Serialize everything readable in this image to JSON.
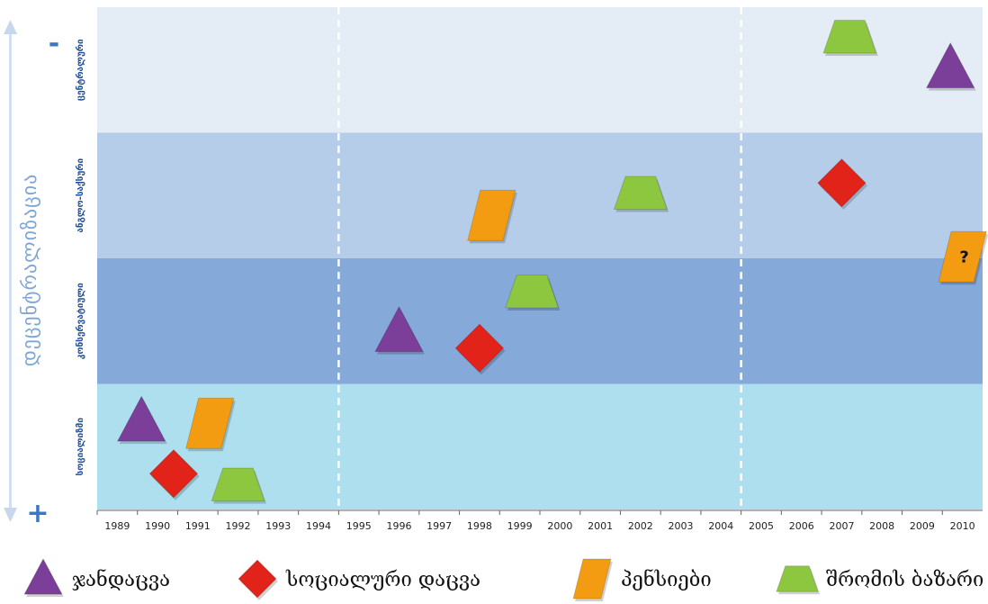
{
  "chart_data": {
    "type": "scatter",
    "title": "",
    "y_axis_title": "დეცენტრალიზაცია",
    "y_axis_top_sign": "-",
    "y_axis_bottom_sign": "+",
    "x": [
      "1989",
      "1990",
      "1991",
      "1992",
      "1993",
      "1994",
      "1995",
      "1996",
      "1997",
      "1998",
      "1999",
      "2000",
      "2001",
      "2002",
      "2003",
      "2004",
      "2005",
      "2006",
      "2007",
      "2008",
      "2009",
      "2010"
    ],
    "bands": [
      {
        "label": "ცენტრალური",
        "color": "#e4ecf6"
      },
      {
        "label": "ანგლო-საქსური",
        "color": "#b5cde8"
      },
      {
        "label": "კონსერვატიული",
        "color": "#85aad9"
      },
      {
        "label": "სოციალიზმი",
        "color": "#aedfee"
      }
    ],
    "legend": [
      {
        "label": "ჯანდაცვა",
        "shape": "triangle",
        "color": "#7b3f99"
      },
      {
        "label": "სოციალური დაცვა",
        "shape": "diamond",
        "color": "#e2231a"
      },
      {
        "label": "პენსიები",
        "shape": "parallelogram",
        "color": "#f39c12"
      },
      {
        "label": "შრომის ბაზარი",
        "shape": "trapezoid",
        "color": "#8dc63f"
      }
    ],
    "points": [
      {
        "series": "ჯანდაცვა",
        "x": 1989.6,
        "band": "სოციალიზმი"
      },
      {
        "series": "სოციალური დაცვა",
        "x": 1990.4,
        "band": "სოციალიზმი"
      },
      {
        "series": "პენსიები",
        "x": 1991.3,
        "band": "სოციალიზმი"
      },
      {
        "series": "შრომის ბაზარი",
        "x": 1992.0,
        "band": "სოციალიზმი"
      },
      {
        "series": "ჯანდაცვა",
        "x": 1996.0,
        "band": "კონსერვატიული"
      },
      {
        "series": "სოციალური დაცვა",
        "x": 1998.0,
        "band": "კონსერვატიული"
      },
      {
        "series": "შრომის ბაზარი",
        "x": 1999.3,
        "band": "კონსერვატიული"
      },
      {
        "series": "პენსიები",
        "x": 1998.3,
        "band": "ანგლო-საქსური"
      },
      {
        "series": "შრომის ბაზარი",
        "x": 2002.0,
        "band": "ანგლო-საქსური"
      },
      {
        "series": "სოციალური დაცვა",
        "x": 2007.0,
        "band": "ანგლო-საქსური"
      },
      {
        "series": "პენსიები",
        "x": 2010.0,
        "band": "ანგლო-საქსური",
        "annotation": "?"
      },
      {
        "series": "შრომის ბაზარი",
        "x": 2007.2,
        "band": "ცენტრალური"
      },
      {
        "series": "ჯანდაცვა",
        "x": 2009.7,
        "band": "ცენტრალური"
      }
    ],
    "dividers_after": [
      "1994",
      "2004"
    ]
  }
}
